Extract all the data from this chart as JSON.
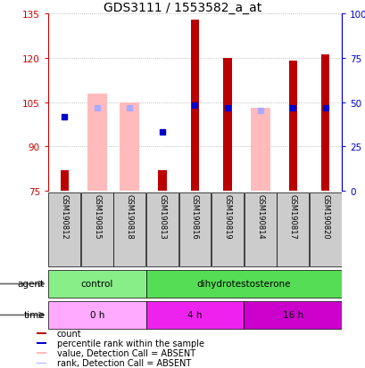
{
  "title": "GDS3111 / 1553582_a_at",
  "samples": [
    "GSM190812",
    "GSM190815",
    "GSM190818",
    "GSM190813",
    "GSM190816",
    "GSM190819",
    "GSM190814",
    "GSM190817",
    "GSM190820"
  ],
  "ylim_left": [
    75,
    135
  ],
  "ylim_right": [
    0,
    100
  ],
  "yticks_left": [
    75,
    90,
    105,
    120,
    135
  ],
  "yticks_right": [
    0,
    25,
    50,
    75,
    100
  ],
  "ytick_labels_right": [
    "0",
    "25",
    "50",
    "75",
    "100%"
  ],
  "bar_bottom": 75,
  "red_bars_top": [
    82,
    null,
    null,
    82,
    133,
    120,
    null,
    119,
    121
  ],
  "pink_bars_top": [
    null,
    108,
    105,
    null,
    null,
    null,
    103,
    null,
    null
  ],
  "blue_sq_y": [
    100,
    null,
    null,
    95,
    104,
    103,
    null,
    103,
    103
  ],
  "lblue_sq_y": [
    null,
    103,
    103,
    null,
    null,
    null,
    102,
    null,
    null
  ],
  "agent_groups": [
    {
      "label": "control",
      "start": 0,
      "end": 3,
      "color": "#88ee88"
    },
    {
      "label": "dihydrotestosterone",
      "start": 3,
      "end": 9,
      "color": "#55dd55"
    }
  ],
  "time_groups": [
    {
      "label": "0 h",
      "start": 0,
      "end": 3,
      "color": "#ffaaff"
    },
    {
      "label": "4 h",
      "start": 3,
      "end": 6,
      "color": "#ee22ee"
    },
    {
      "label": "16 h",
      "start": 6,
      "end": 9,
      "color": "#cc00cc"
    }
  ],
  "legend_items": [
    {
      "color": "#bb0000",
      "label": "count"
    },
    {
      "color": "#0000cc",
      "label": "percentile rank within the sample"
    },
    {
      "color": "#ffbbbb",
      "label": "value, Detection Call = ABSENT"
    },
    {
      "color": "#aaaaff",
      "label": "rank, Detection Call = ABSENT"
    }
  ],
  "title_fontsize": 10,
  "left_color": "#cc0000",
  "right_color": "#0000cc",
  "sample_box_color": "#cccccc",
  "grid_color": "#aaaaaa"
}
